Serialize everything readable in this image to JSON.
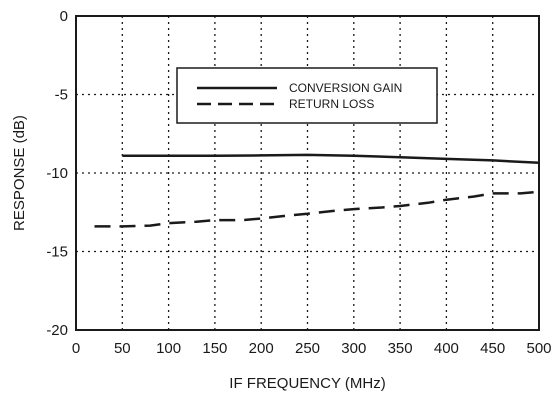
{
  "chart_data": {
    "type": "line",
    "xlabel": "IF FREQUENCY (MHz)",
    "ylabel": "RESPONSE (dB)",
    "xlim": [
      0,
      500
    ],
    "ylim": [
      -20,
      0
    ],
    "x_ticks": [
      0,
      50,
      100,
      150,
      200,
      250,
      300,
      350,
      400,
      450,
      500
    ],
    "y_ticks": [
      0,
      -5,
      -10,
      -15,
      -20
    ],
    "x_tick_labels": [
      "0",
      "50",
      "100",
      "150",
      "200",
      "250",
      "300",
      "350",
      "400",
      "450",
      "500"
    ],
    "y_tick_labels": [
      "0",
      "-5",
      "-10",
      "-15",
      "-20"
    ],
    "grid": true,
    "grid_style": "dotted",
    "legend_position": "top-right",
    "series": [
      {
        "name": "CONVERSION GAIN",
        "line_style": "solid",
        "color": "#1a1a1a",
        "x": [
          50,
          100,
          150,
          200,
          250,
          300,
          350,
          400,
          450,
          500
        ],
        "y": [
          -8.9,
          -8.9,
          -8.9,
          -8.88,
          -8.85,
          -8.9,
          -9.0,
          -9.1,
          -9.2,
          -9.35
        ]
      },
      {
        "name": "RETURN LOSS",
        "line_style": "dashed",
        "color": "#1a1a1a",
        "x": [
          20,
          50,
          80,
          100,
          130,
          150,
          180,
          200,
          230,
          250,
          280,
          300,
          330,
          350,
          380,
          400,
          430,
          450,
          480,
          500
        ],
        "y": [
          -13.4,
          -13.4,
          -13.35,
          -13.2,
          -13.1,
          -13.0,
          -13.0,
          -12.9,
          -12.7,
          -12.6,
          -12.4,
          -12.3,
          -12.2,
          -12.1,
          -11.9,
          -11.7,
          -11.5,
          -11.3,
          -11.3,
          -11.2
        ]
      }
    ]
  }
}
